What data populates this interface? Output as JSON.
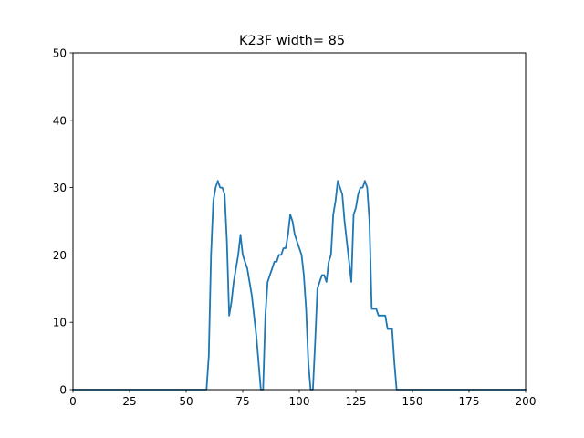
{
  "chart_data": {
    "type": "line",
    "title": "K23F width= 85",
    "xlabel": "",
    "ylabel": "",
    "xlim": [
      0,
      200
    ],
    "ylim": [
      0,
      50
    ],
    "x_ticks": [
      0,
      25,
      50,
      75,
      100,
      125,
      150,
      175,
      200
    ],
    "y_ticks": [
      0,
      10,
      20,
      30,
      40,
      50
    ],
    "grid": false,
    "series": [
      {
        "color": "#1f77b4",
        "points": [
          [
            0,
            0
          ],
          [
            59,
            0
          ],
          [
            60,
            5
          ],
          [
            61,
            20
          ],
          [
            62,
            28
          ],
          [
            63,
            30
          ],
          [
            64,
            31
          ],
          [
            65,
            30
          ],
          [
            66,
            30
          ],
          [
            67,
            29
          ],
          [
            68,
            22
          ],
          [
            69,
            11
          ],
          [
            70,
            13
          ],
          [
            71,
            16
          ],
          [
            72,
            18
          ],
          [
            73,
            20
          ],
          [
            74,
            23
          ],
          [
            75,
            20
          ],
          [
            76,
            19
          ],
          [
            77,
            18
          ],
          [
            78,
            16
          ],
          [
            79,
            14
          ],
          [
            80,
            11
          ],
          [
            81,
            8
          ],
          [
            82,
            4
          ],
          [
            83,
            0
          ],
          [
            84,
            0
          ],
          [
            85,
            11
          ],
          [
            86,
            16
          ],
          [
            87,
            17
          ],
          [
            88,
            18
          ],
          [
            89,
            19
          ],
          [
            90,
            19
          ],
          [
            91,
            20
          ],
          [
            92,
            20
          ],
          [
            93,
            21
          ],
          [
            94,
            21
          ],
          [
            95,
            23
          ],
          [
            96,
            26
          ],
          [
            97,
            25
          ],
          [
            98,
            23
          ],
          [
            99,
            22
          ],
          [
            100,
            21
          ],
          [
            101,
            20
          ],
          [
            102,
            17
          ],
          [
            103,
            12
          ],
          [
            104,
            4
          ],
          [
            105,
            0
          ],
          [
            106,
            0
          ],
          [
            107,
            7
          ],
          [
            108,
            15
          ],
          [
            109,
            16
          ],
          [
            110,
            17
          ],
          [
            111,
            17
          ],
          [
            112,
            16
          ],
          [
            113,
            19
          ],
          [
            114,
            20
          ],
          [
            115,
            26
          ],
          [
            116,
            28
          ],
          [
            117,
            31
          ],
          [
            118,
            30
          ],
          [
            119,
            29
          ],
          [
            120,
            25
          ],
          [
            121,
            22
          ],
          [
            122,
            19
          ],
          [
            123,
            16
          ],
          [
            124,
            26
          ],
          [
            125,
            27
          ],
          [
            126,
            29
          ],
          [
            127,
            30
          ],
          [
            128,
            30
          ],
          [
            129,
            31
          ],
          [
            130,
            30
          ],
          [
            131,
            25
          ],
          [
            132,
            12
          ],
          [
            133,
            12
          ],
          [
            134,
            12
          ],
          [
            135,
            11
          ],
          [
            136,
            11
          ],
          [
            137,
            11
          ],
          [
            138,
            11
          ],
          [
            139,
            9
          ],
          [
            140,
            9
          ],
          [
            141,
            9
          ],
          [
            142,
            4
          ],
          [
            143,
            0
          ],
          [
            144,
            0
          ],
          [
            200,
            0
          ]
        ]
      }
    ]
  }
}
